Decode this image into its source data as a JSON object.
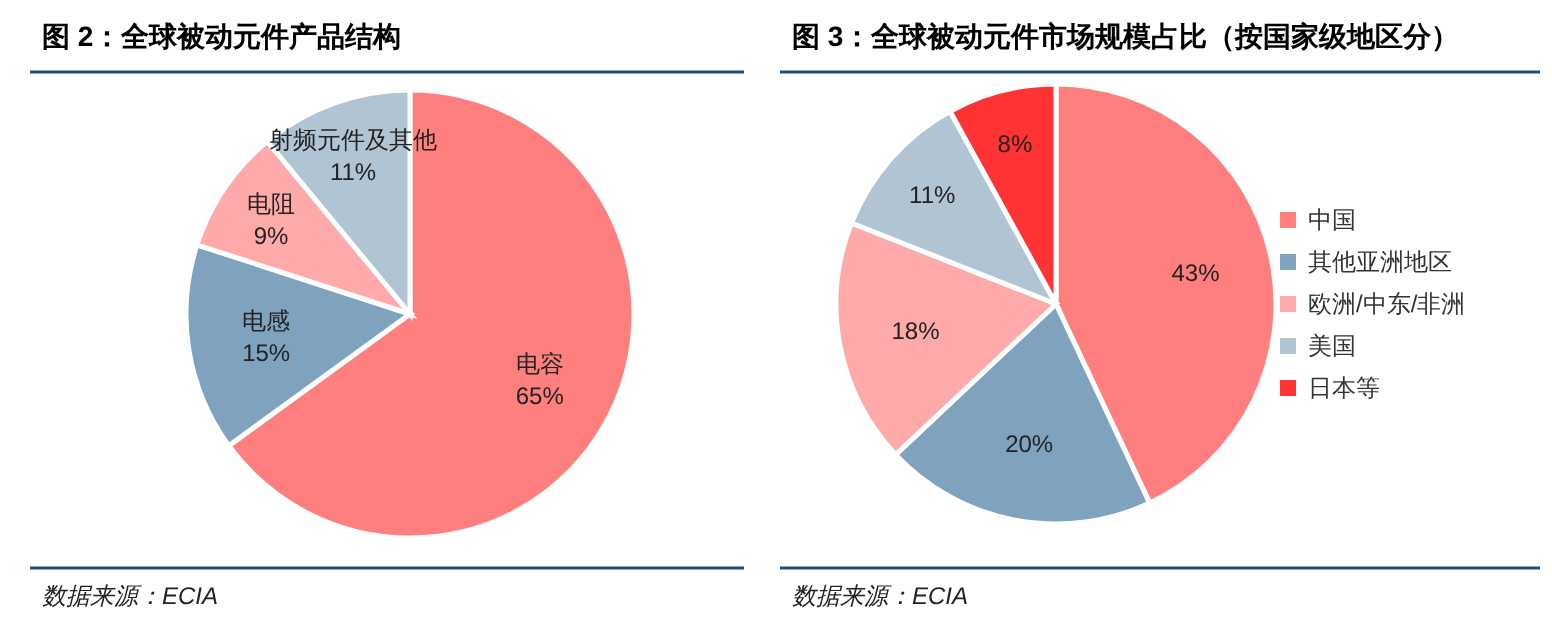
{
  "chart_data": [
    {
      "type": "pie",
      "title": "图 2：全球被动元件产品结构",
      "categories": [
        "电容",
        "电感",
        "电阻",
        "射频元件及其他"
      ],
      "values": [
        65,
        15,
        9,
        11
      ],
      "value_labels": [
        "65%",
        "15%",
        "9%",
        "11%"
      ],
      "colors": [
        "#ff7f7f",
        "#7fa3bf",
        "#ffaaaa",
        "#b0c4d4"
      ],
      "legend": false,
      "annotations": [
        "数据来源：ECIA"
      ]
    },
    {
      "type": "pie",
      "title": "图 3：全球被动元件市场规模占比（按国家级地区分）",
      "categories": [
        "中国",
        "其他亚洲地区",
        "欧洲/中东/非洲",
        "美国",
        "日本等"
      ],
      "values": [
        43,
        20,
        18,
        11,
        8
      ],
      "value_labels": [
        "43%",
        "20%",
        "18%",
        "11%",
        "8%"
      ],
      "colors": [
        "#ff7f7f",
        "#7fa3bf",
        "#ffaaaa",
        "#b0c4d4",
        "#ff3333"
      ],
      "legend": "right",
      "annotations": [
        "数据来源：ECIA"
      ]
    }
  ]
}
